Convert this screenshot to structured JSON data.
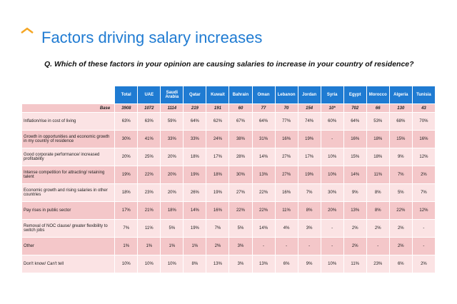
{
  "header": {
    "title": "Factors driving salary increases",
    "question": "Q. Which of these factors in your opinion are causing salaries to increase in your country of residence?"
  },
  "table": {
    "columns": [
      "Total",
      "UAE",
      "Saudi Arabia",
      "Qatar",
      "Kuwait",
      "Bahrain",
      "Oman",
      "Lebanon",
      "Jordan",
      "Syria",
      "Egypt",
      "Morocco",
      "Algeria",
      "Tunisia"
    ],
    "base": {
      "label": "Base",
      "values": [
        "3908",
        "1072",
        "1114",
        "219",
        "191",
        "60",
        "77",
        "70",
        "154",
        "10*",
        "702",
        "66",
        "130",
        "43"
      ]
    },
    "rows": [
      {
        "label": "Inflation/rise in cost of living",
        "values": [
          "63%",
          "63%",
          "59%",
          "64%",
          "62%",
          "67%",
          "64%",
          "77%",
          "74%",
          "60%",
          "64%",
          "53%",
          "68%",
          "70%"
        ]
      },
      {
        "label": "Growth in opportunities and economic growth in my country of residence",
        "values": [
          "30%",
          "41%",
          "33%",
          "33%",
          "24%",
          "38%",
          "31%",
          "16%",
          "19%",
          "-",
          "16%",
          "18%",
          "15%",
          "16%"
        ]
      },
      {
        "label": "Good corporate performance/ increased profitability",
        "values": [
          "20%",
          "25%",
          "20%",
          "18%",
          "17%",
          "28%",
          "14%",
          "27%",
          "17%",
          "10%",
          "15%",
          "18%",
          "9%",
          "12%"
        ]
      },
      {
        "label": "Intense competition for attracting/ retaining talent",
        "values": [
          "19%",
          "22%",
          "20%",
          "19%",
          "18%",
          "30%",
          "13%",
          "27%",
          "19%",
          "10%",
          "14%",
          "11%",
          "7%",
          "2%"
        ]
      },
      {
        "label": "Economic growth and rising salaries in other countries",
        "values": [
          "18%",
          "23%",
          "20%",
          "26%",
          "19%",
          "27%",
          "22%",
          "16%",
          "7%",
          "30%",
          "9%",
          "8%",
          "5%",
          "7%"
        ]
      },
      {
        "label": "Pay rises in public sector",
        "values": [
          "17%",
          "21%",
          "18%",
          "14%",
          "16%",
          "22%",
          "22%",
          "11%",
          "8%",
          "20%",
          "13%",
          "8%",
          "22%",
          "12%"
        ]
      },
      {
        "label": "Removal of NOC clause/ greater flexibility to switch jobs",
        "values": [
          "7%",
          "11%",
          "5%",
          "19%",
          "7%",
          "5%",
          "14%",
          "4%",
          "3%",
          "-",
          "2%",
          "2%",
          "2%",
          "-"
        ]
      },
      {
        "label": "Other",
        "values": [
          "1%",
          "1%",
          "1%",
          "1%",
          "2%",
          "3%",
          "-",
          "-",
          "-",
          "-",
          "2%",
          "-",
          "2%",
          "-"
        ]
      },
      {
        "label": "Don't know/ Can't tell",
        "values": [
          "10%",
          "10%",
          "10%",
          "8%",
          "13%",
          "3%",
          "13%",
          "6%",
          "9%",
          "10%",
          "11%",
          "23%",
          "6%",
          "2%"
        ]
      }
    ]
  }
}
